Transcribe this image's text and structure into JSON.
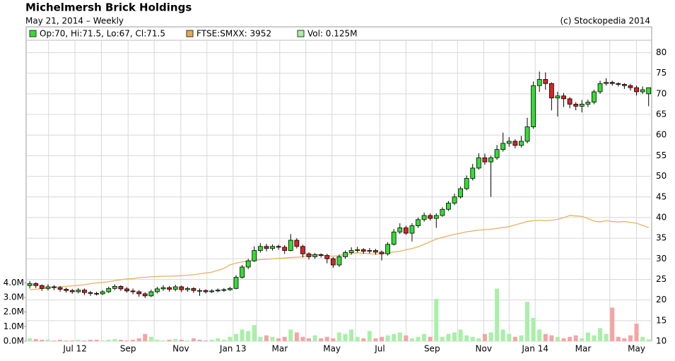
{
  "chart_data": {
    "type": "candlestick",
    "title": "Michelmersh Brick Holdings",
    "subtitle": "May 21, 2014 – Weekly",
    "copyright": "(c) Stockopedia 2014",
    "legend": [
      {
        "text": "Op:70, Hi:71.5, Lo:67, Cl:71.5",
        "color": "#33dd33"
      },
      {
        "text": "FTSE:SMXX: 3952",
        "color": "#e8a850"
      },
      {
        "text": "Vol: 0.125M",
        "color": "#a8f0a8"
      }
    ],
    "up_color": "#33dd33",
    "down_color": "#dd2222",
    "grid": true,
    "x": [
      0,
      1,
      2,
      3,
      4,
      5,
      6,
      7,
      8,
      9,
      10,
      11,
      12,
      13,
      14,
      15,
      16,
      17,
      18,
      19,
      20,
      21,
      22,
      23,
      24,
      25,
      26,
      27,
      28,
      29,
      30,
      31,
      32,
      33,
      34,
      35,
      36,
      37,
      38,
      39,
      40,
      41,
      42,
      43,
      44,
      45,
      46,
      47,
      48,
      49,
      50,
      51,
      52,
      53,
      54,
      55,
      56,
      57,
      58,
      59,
      60,
      61,
      62,
      63,
      64,
      65,
      66,
      67,
      68,
      69,
      70,
      71,
      72,
      73,
      74,
      75,
      76,
      77,
      78,
      79,
      80,
      81,
      82,
      83,
      84,
      85,
      86,
      87,
      88,
      89,
      90,
      91,
      92,
      93,
      94,
      95,
      96,
      97,
      98,
      99,
      100,
      101,
      102
    ],
    "open": [
      23.5,
      24,
      23.5,
      22.8,
      23.2,
      23,
      22.6,
      22.3,
      22,
      22.4,
      21.8,
      21.6,
      21.5,
      22,
      22.8,
      23.3,
      22.7,
      22.2,
      22,
      21.5,
      21,
      22,
      22.7,
      23,
      22.6,
      23.2,
      22.5,
      22.8,
      22.3,
      22.3,
      22,
      22.2,
      22.4,
      22.5,
      22.8,
      25.5,
      28,
      29.5,
      32,
      33,
      32.5,
      33,
      32.8,
      32,
      34.5,
      33,
      31.2,
      30.5,
      31,
      30.8,
      30,
      28.5,
      30.5,
      31.5,
      32,
      32.2,
      31.8,
      32,
      31.6,
      31.2,
      33.5,
      36.5,
      37.5,
      36.2,
      38,
      39.5,
      40.5,
      39.8,
      40.5,
      42,
      43.5,
      45,
      47,
      49.5,
      52,
      54.5,
      53.5,
      54.5,
      56.5,
      58,
      58.5,
      57.5,
      58.5,
      62,
      72,
      73.5,
      72.5,
      69,
      69.5,
      68.8,
      67.5,
      67,
      67.5,
      68,
      70.5,
      72.5,
      72.8,
      72.5,
      72.3,
      72,
      71.5,
      70.5,
      70
    ],
    "high": [
      24.6,
      24.3,
      23.8,
      23.8,
      23.6,
      23.4,
      23,
      22.7,
      22.9,
      22.8,
      22.2,
      22,
      22.4,
      23.2,
      23.8,
      23.6,
      23.1,
      22.8,
      22.4,
      21.9,
      22.5,
      23.2,
      23.6,
      23.4,
      23.7,
      23.5,
      23.2,
      23.1,
      22.8,
      22.6,
      22.6,
      22.8,
      22.9,
      23.2,
      26,
      28.5,
      30,
      33,
      33.8,
      33.6,
      33.5,
      33.4,
      33.3,
      36,
      35,
      33.4,
      31.6,
      31.4,
      31.3,
      31.2,
      30.4,
      31,
      32,
      32.8,
      32.9,
      32.6,
      32.6,
      32.4,
      32,
      34,
      37.2,
      38.6,
      38,
      38.6,
      40,
      41.2,
      41,
      41,
      42.5,
      44,
      45.8,
      47.5,
      50.2,
      53,
      55.6,
      55.5,
      55,
      57.6,
      60.6,
      59.5,
      59,
      59.8,
      64.2,
      73,
      75.4,
      75.2,
      72.8,
      70.5,
      70.2,
      69.2,
      68,
      68.5,
      68.6,
      71,
      73.2,
      73.8,
      73.2,
      72.8,
      72.6,
      72.4,
      72,
      71.8,
      71.5
    ],
    "low": [
      22.8,
      22.9,
      22.2,
      22.3,
      22.4,
      22,
      21.8,
      21.5,
      21.6,
      21.2,
      21,
      21.1,
      21.2,
      21.7,
      22.4,
      22.2,
      21.8,
      21.4,
      20.8,
      20.5,
      20.7,
      21.6,
      22.2,
      22,
      22.1,
      21.9,
      22,
      21.7,
      21,
      21.6,
      21.7,
      21.9,
      22,
      22.2,
      22.6,
      25.2,
      27.5,
      29.2,
      31.5,
      31.8,
      32,
      32.2,
      31.2,
      31.8,
      32.5,
      30.3,
      29.8,
      30,
      30.3,
      28.9,
      27.8,
      28,
      30,
      31,
      31.5,
      31.2,
      31.3,
      31,
      29.6,
      30.8,
      33.2,
      36,
      35.8,
      34.2,
      37.5,
      39,
      39.3,
      37.5,
      40.2,
      41.6,
      43,
      44.6,
      46.6,
      49,
      51.6,
      52.8,
      45,
      54,
      56,
      57.2,
      56.8,
      57,
      58,
      61.5,
      70.5,
      71,
      66,
      64.5,
      66.8,
      66.5,
      66,
      65.5,
      66.8,
      67.5,
      70,
      72,
      72,
      71.8,
      71.2,
      70.8,
      69.6,
      70,
      67
    ],
    "close": [
      24,
      23.5,
      22.8,
      23.2,
      23,
      22.6,
      22.3,
      22,
      22.4,
      21.8,
      21.6,
      21.5,
      22,
      22.8,
      23.3,
      22.7,
      22.2,
      22,
      21.5,
      21,
      22,
      22.7,
      23,
      22.6,
      23.2,
      22.5,
      22.8,
      22.3,
      22.3,
      22,
      22.2,
      22.4,
      22.5,
      22.8,
      25.5,
      28,
      29.5,
      32,
      33,
      32.5,
      33,
      32.8,
      32,
      34.5,
      33,
      31.2,
      30.5,
      31,
      30.8,
      30,
      28.5,
      30.5,
      31.5,
      32,
      32.2,
      31.8,
      32,
      31.6,
      31.2,
      33.5,
      36.5,
      37.5,
      36.2,
      38,
      39.5,
      40.5,
      39.8,
      40.5,
      42,
      43.5,
      45,
      47,
      49.5,
      52,
      54.5,
      53.5,
      54.5,
      56.5,
      58,
      58.5,
      57.5,
      58.5,
      62,
      72,
      73.5,
      72.5,
      69,
      69.5,
      68.8,
      67.5,
      67,
      67.5,
      68,
      70.5,
      72.5,
      72.8,
      72.5,
      72.3,
      72,
      71.5,
      70.5,
      71,
      71.5
    ],
    "series": [
      {
        "type": "bar",
        "axis": "y2",
        "up_color": "#a8f0a8",
        "down_color": "#f4a4a4",
        "flat_color": "#b8b8b8",
        "values": [
          0.2,
          0.15,
          0.1,
          0.1,
          0.05,
          0.1,
          0.05,
          0.05,
          0.1,
          0.05,
          0.1,
          0.1,
          0.05,
          0.1,
          0.15,
          0.1,
          0.05,
          0.1,
          0.2,
          0.5,
          0.3,
          0.1,
          0.05,
          0.1,
          0.15,
          0.1,
          0.05,
          0.2,
          0.1,
          0.05,
          0.1,
          0.2,
          0.1,
          0.3,
          0.5,
          0.8,
          0.7,
          1.1,
          0.3,
          0.4,
          0.3,
          0.2,
          0.3,
          0.8,
          0.6,
          0.3,
          0.2,
          0.4,
          0.2,
          0.3,
          0.2,
          0.6,
          0.5,
          0.8,
          0.3,
          0.2,
          0.7,
          0.2,
          0.3,
          0.4,
          0.5,
          0.6,
          0.4,
          0.2,
          0.3,
          0.5,
          0.3,
          2.9,
          0.3,
          0.5,
          0.6,
          0.8,
          0.4,
          0.3,
          0.2,
          0.5,
          0.6,
          3.6,
          0.8,
          0.5,
          0.3,
          0.4,
          2.7,
          1.6,
          0.8,
          0.5,
          0.4,
          0.3,
          0.2,
          0.3,
          0.4,
          0.2,
          0.6,
          0.4,
          0.9,
          0.5,
          2.3,
          0.3,
          0.2,
          0.4,
          1.2,
          0.3,
          0.125
        ]
      },
      {
        "type": "line",
        "axis": "y3",
        "color": "#e8b060",
        "values": [
          2500,
          2510,
          2530,
          2540,
          2560,
          2570,
          2580,
          2590,
          2600,
          2620,
          2640,
          2660,
          2670,
          2690,
          2710,
          2730,
          2750,
          2760,
          2780,
          2790,
          2800,
          2810,
          2815,
          2815,
          2820,
          2830,
          2840,
          2850,
          2870,
          2890,
          2910,
          2950,
          3000,
          3080,
          3120,
          3150,
          3170,
          3190,
          3200,
          3210,
          3220,
          3230,
          3240,
          3250,
          3260,
          3270,
          3300,
          3320,
          3310,
          3290,
          3280,
          3300,
          3320,
          3340,
          3360,
          3350,
          3340,
          3330,
          3340,
          3360,
          3380,
          3400,
          3430,
          3460,
          3500,
          3560,
          3620,
          3680,
          3720,
          3760,
          3790,
          3820,
          3850,
          3870,
          3890,
          3900,
          3910,
          3930,
          3950,
          3970,
          4010,
          4050,
          4090,
          4110,
          4120,
          4110,
          4120,
          4140,
          4180,
          4230,
          4220,
          4210,
          4160,
          4100,
          4080,
          4110,
          4090,
          4080,
          4090,
          4070,
          4050,
          4000,
          3952
        ]
      }
    ],
    "xlim": [
      -0.6,
      102.5
    ],
    "xticks": [
      {
        "value": 7.45,
        "label": "Jul 12"
      },
      {
        "value": 16.2,
        "label": "Sep"
      },
      {
        "value": 24.9,
        "label": "Nov"
      },
      {
        "value": 33.5,
        "label": "Jan 13"
      },
      {
        "value": 41.2,
        "label": "Mar"
      },
      {
        "value": 49.8,
        "label": "May"
      },
      {
        "value": 57.7,
        "label": "Jul"
      },
      {
        "value": 66.3,
        "label": "Sep"
      },
      {
        "value": 74.8,
        "label": "Nov"
      },
      {
        "value": 83.3,
        "label": "Jan 14"
      },
      {
        "value": 91.2,
        "label": "Mar"
      },
      {
        "value": 100,
        "label": "May"
      }
    ],
    "xminor": [
      3.1,
      11.8,
      20.5,
      29.2,
      37.4,
      45.5,
      53.7,
      62,
      70.5,
      79,
      87.2,
      95.6
    ],
    "ylim": [
      10,
      83
    ],
    "yticks": [
      10,
      15,
      20,
      25,
      30,
      35,
      40,
      45,
      50,
      55,
      60,
      65,
      70,
      75,
      80
    ],
    "y2lim": [
      0,
      20.6
    ],
    "y2ticks": [
      {
        "value": 0,
        "label": "0.0M"
      },
      {
        "value": 1,
        "label": "1.0M"
      },
      {
        "value": 2,
        "label": "2.0M"
      },
      {
        "value": 3,
        "label": "3.0M"
      },
      {
        "value": 4,
        "label": "4.0M"
      }
    ],
    "y3lim": [
      1300,
      8315
    ]
  }
}
